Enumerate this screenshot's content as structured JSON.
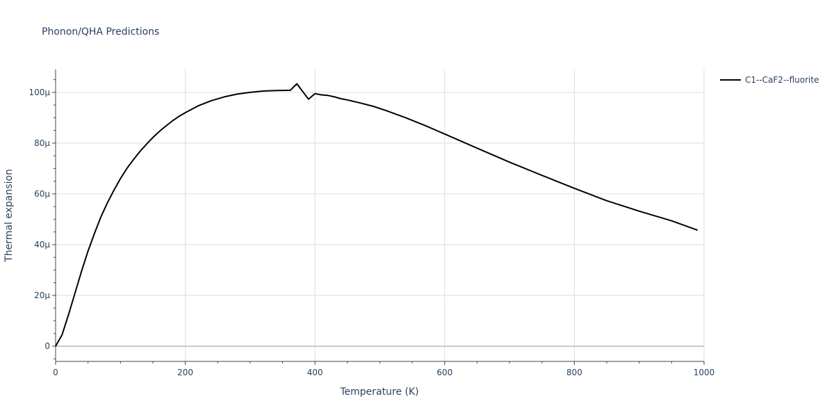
{
  "chart_data": {
    "type": "line",
    "title": "Phonon/QHA Predictions",
    "xlabel": "Temperature (K)",
    "ylabel": "Thermal expansion",
    "xlim": [
      0,
      1000
    ],
    "ylim": [
      -6,
      109
    ],
    "x_ticks": [
      0,
      200,
      400,
      600,
      800,
      1000
    ],
    "x_tick_labels": [
      "0",
      "200",
      "400",
      "600",
      "800",
      "1000"
    ],
    "x_minor_ticks": [
      50,
      100,
      150,
      250,
      300,
      350,
      450,
      500,
      550,
      650,
      700,
      750,
      850,
      900,
      950
    ],
    "y_ticks": [
      0,
      20,
      40,
      60,
      80,
      100
    ],
    "y_tick_labels": [
      "0",
      "20μ",
      "40μ",
      "60μ",
      "80μ",
      "100μ"
    ],
    "y_minor_ticks": [
      -5,
      5,
      10,
      15,
      25,
      30,
      35,
      45,
      50,
      55,
      65,
      70,
      75,
      85,
      90,
      95,
      105
    ],
    "grid": true,
    "legend_position": "top-right",
    "series": [
      {
        "name": "C1--CaF2--fluorite",
        "color": "#000000",
        "x": [
          0,
          10,
          20,
          30,
          40,
          50,
          60,
          70,
          80,
          90,
          100,
          110,
          120,
          130,
          140,
          150,
          160,
          170,
          180,
          190,
          200,
          220,
          240,
          260,
          280,
          300,
          320,
          340,
          362,
          372,
          390,
          400,
          410,
          420,
          430,
          440,
          450,
          470,
          490,
          510,
          540,
          570,
          600,
          650,
          700,
          750,
          800,
          850,
          900,
          950,
          990
        ],
        "y": [
          0,
          4.5,
          12.5,
          21,
          29.5,
          37.5,
          44.5,
          51,
          56.5,
          61.5,
          66,
          70,
          73.5,
          76.7,
          79.5,
          82.2,
          84.6,
          86.7,
          88.7,
          90.5,
          92,
          94.7,
          96.7,
          98.2,
          99.3,
          100,
          100.5,
          100.7,
          100.8,
          103.4,
          97.3,
          99.5,
          99,
          98.8,
          98.2,
          97.5,
          97,
          95.8,
          94.5,
          92.8,
          90,
          86.9,
          83.6,
          78,
          72.5,
          67.3,
          62.2,
          57.3,
          53.2,
          49.4,
          45.7
        ]
      }
    ]
  }
}
